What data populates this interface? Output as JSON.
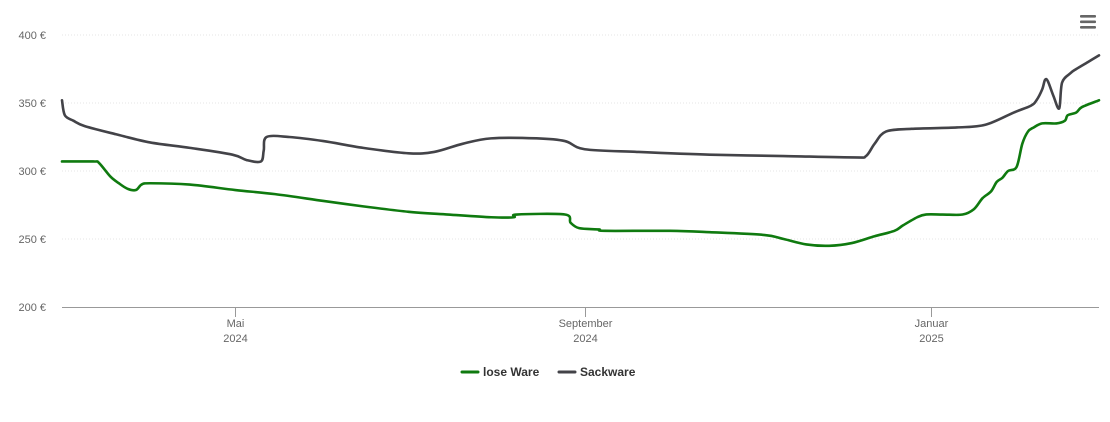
{
  "chart_data": {
    "type": "line",
    "title": "",
    "xlabel": "",
    "ylabel": "",
    "x_range": [
      "2024-03-01",
      "2025-03-01"
    ],
    "ylim": [
      200,
      400
    ],
    "y_ticks": [
      200,
      250,
      300,
      350,
      400
    ],
    "y_tick_labels": [
      "200 €",
      "250 €",
      "300 €",
      "350 €",
      "400 €"
    ],
    "x_ticks": [
      {
        "date": "2024-05-01",
        "line1": "Mai",
        "line2": "2024"
      },
      {
        "date": "2024-09-01",
        "line1": "September",
        "line2": "2024"
      },
      {
        "date": "2025-01-01",
        "line1": "Januar",
        "line2": "2025"
      }
    ],
    "grid": true,
    "legend_position": "bottom-center",
    "series": [
      {
        "name": "lose Ware",
        "color": "#0f7a0f",
        "points": [
          [
            "2024-03-01",
            307
          ],
          [
            "2024-03-12",
            307
          ],
          [
            "2024-03-14",
            306
          ],
          [
            "2024-03-18",
            296
          ],
          [
            "2024-03-21",
            291
          ],
          [
            "2024-03-24",
            287
          ],
          [
            "2024-03-27",
            286
          ],
          [
            "2024-03-29",
            290
          ],
          [
            "2024-04-01",
            291
          ],
          [
            "2024-04-15",
            290
          ],
          [
            "2024-05-01",
            286
          ],
          [
            "2024-05-15",
            283
          ],
          [
            "2024-06-01",
            278
          ],
          [
            "2024-06-15",
            274
          ],
          [
            "2024-07-01",
            270
          ],
          [
            "2024-07-15",
            268
          ],
          [
            "2024-07-30",
            266
          ],
          [
            "2024-08-07",
            266
          ],
          [
            "2024-08-08",
            268
          ],
          [
            "2024-08-25",
            268
          ],
          [
            "2024-08-27",
            262
          ],
          [
            "2024-08-30",
            258
          ],
          [
            "2024-09-06",
            257
          ],
          [
            "2024-09-08",
            256
          ],
          [
            "2024-10-01",
            256
          ],
          [
            "2024-10-15",
            255
          ],
          [
            "2024-11-03",
            253
          ],
          [
            "2024-11-10",
            250
          ],
          [
            "2024-11-18",
            246
          ],
          [
            "2024-11-26",
            245
          ],
          [
            "2024-12-04",
            247
          ],
          [
            "2024-12-12",
            252
          ],
          [
            "2024-12-19",
            256
          ],
          [
            "2024-12-22",
            260
          ],
          [
            "2024-12-27",
            266
          ],
          [
            "2024-12-30",
            268
          ],
          [
            "2025-01-05",
            268
          ],
          [
            "2025-01-12",
            268
          ],
          [
            "2025-01-16",
            272
          ],
          [
            "2025-01-19",
            280
          ],
          [
            "2025-01-22",
            285
          ],
          [
            "2025-01-24",
            292
          ],
          [
            "2025-01-26",
            295
          ],
          [
            "2025-01-28",
            300
          ],
          [
            "2025-01-31",
            303
          ],
          [
            "2025-02-02",
            320
          ],
          [
            "2025-02-04",
            329
          ],
          [
            "2025-02-06",
            332
          ],
          [
            "2025-02-09",
            335
          ],
          [
            "2025-02-14",
            335
          ],
          [
            "2025-02-17",
            337
          ],
          [
            "2025-02-18",
            341
          ],
          [
            "2025-02-21",
            343
          ],
          [
            "2025-02-23",
            347
          ],
          [
            "2025-03-01",
            352
          ]
        ]
      },
      {
        "name": "Sackware",
        "color": "#434348",
        "points": [
          [
            "2024-03-01",
            352
          ],
          [
            "2024-03-02",
            341
          ],
          [
            "2024-03-05",
            337
          ],
          [
            "2024-03-09",
            333
          ],
          [
            "2024-03-20",
            327
          ],
          [
            "2024-04-01",
            321
          ],
          [
            "2024-04-15",
            317
          ],
          [
            "2024-04-30",
            312
          ],
          [
            "2024-05-05",
            308
          ],
          [
            "2024-05-10",
            307
          ],
          [
            "2024-05-11",
            315
          ],
          [
            "2024-05-12",
            325
          ],
          [
            "2024-05-20",
            325
          ],
          [
            "2024-06-01",
            322
          ],
          [
            "2024-06-15",
            317
          ],
          [
            "2024-07-01",
            313
          ],
          [
            "2024-07-10",
            314
          ],
          [
            "2024-07-20",
            320
          ],
          [
            "2024-07-30",
            324
          ],
          [
            "2024-08-15",
            324
          ],
          [
            "2024-08-25",
            322
          ],
          [
            "2024-09-01",
            316
          ],
          [
            "2024-09-20",
            314
          ],
          [
            "2024-10-15",
            312
          ],
          [
            "2024-11-10",
            311
          ],
          [
            "2024-12-05",
            310
          ],
          [
            "2024-12-09",
            311
          ],
          [
            "2024-12-12",
            320
          ],
          [
            "2024-12-16",
            329
          ],
          [
            "2024-12-25",
            331
          ],
          [
            "2025-01-10",
            332
          ],
          [
            "2025-01-20",
            334
          ],
          [
            "2025-01-30",
            343
          ],
          [
            "2025-02-05",
            348
          ],
          [
            "2025-02-07",
            352
          ],
          [
            "2025-02-09",
            360
          ],
          [
            "2025-02-10",
            367
          ],
          [
            "2025-02-11",
            366
          ],
          [
            "2025-02-13",
            355
          ],
          [
            "2025-02-15",
            346
          ],
          [
            "2025-02-16",
            365
          ],
          [
            "2025-02-19",
            372
          ],
          [
            "2025-02-21",
            375
          ],
          [
            "2025-02-25",
            380
          ],
          [
            "2025-03-01",
            385
          ]
        ]
      }
    ]
  },
  "ui": {
    "menu_icon": "hamburger-menu-icon"
  }
}
